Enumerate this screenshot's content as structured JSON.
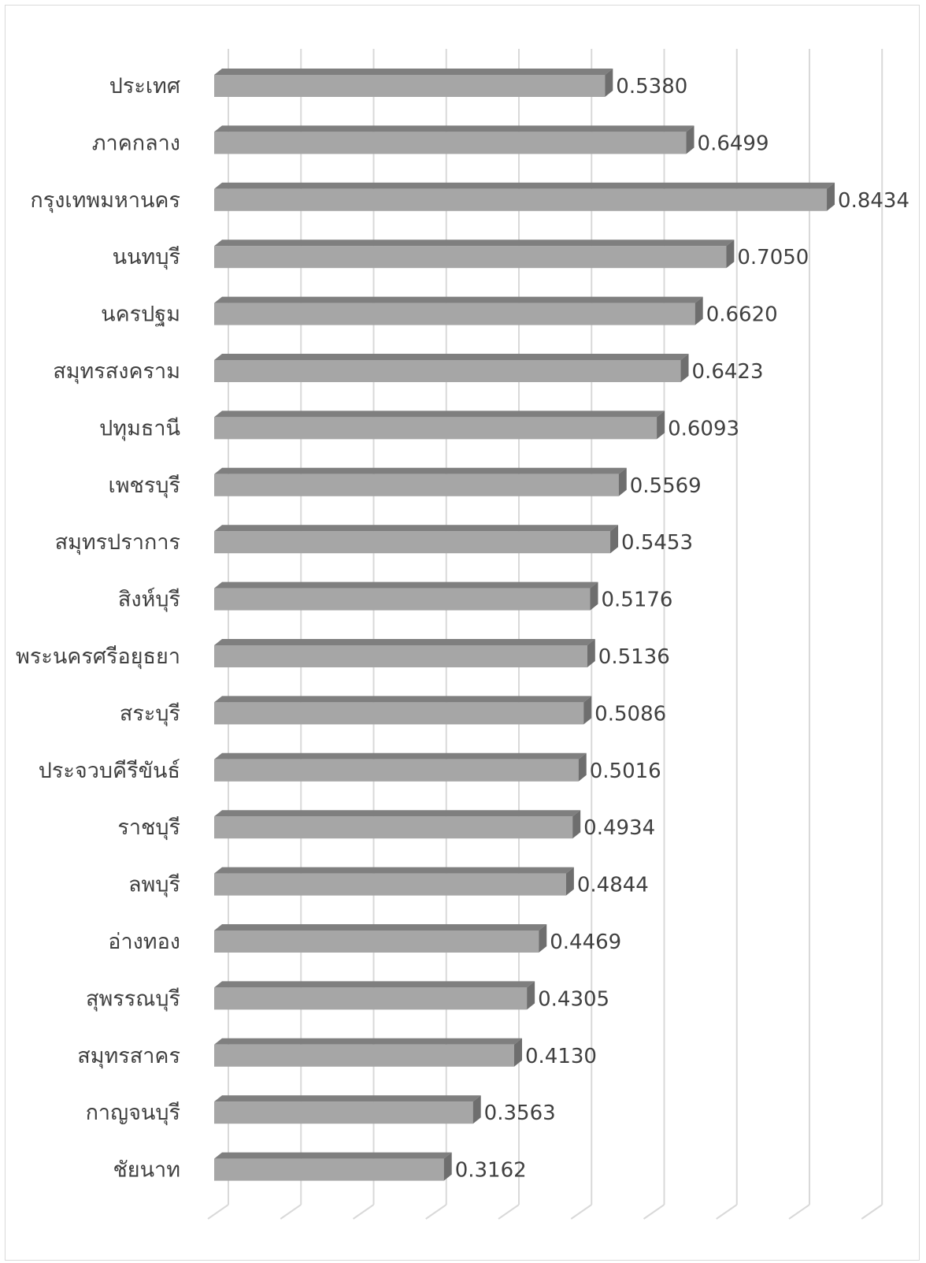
{
  "chart_data": {
    "type": "bar",
    "orientation": "horizontal",
    "style": "3d",
    "categories": [
      "ประเทศ",
      "ภาคกลาง",
      "กรุงเทพมหานคร",
      "นนทบุรี",
      "นครปฐม",
      "สมุทรสงคราม",
      "ปทุมธานี",
      "เพชรบุรี",
      "สมุทรปราการ",
      "สิงห์บุรี",
      "พระนครศรีอยุธยา",
      "สระบุรี",
      "ประจวบคีรีขันธ์",
      "ราชบุรี",
      "ลพบุรี",
      "อ่างทอง",
      "สุพรรณบุรี",
      "สมุทรสาคร",
      "กาญจนบุรี",
      "ชัยนาท"
    ],
    "values": [
      0.538,
      0.6499,
      0.8434,
      0.705,
      0.662,
      0.6423,
      0.6093,
      0.5569,
      0.5453,
      0.5176,
      0.5136,
      0.5086,
      0.5016,
      0.4934,
      0.4844,
      0.4469,
      0.4305,
      0.413,
      0.3563,
      0.3162
    ],
    "value_labels": [
      "0.5380",
      "0.6499",
      "0.8434",
      "0.7050",
      "0.6620",
      "0.6423",
      "0.6093",
      "0.5569",
      "0.5453",
      "0.5176",
      "0.5136",
      "0.5086",
      "0.5016",
      "0.4934",
      "0.4844",
      "0.4469",
      "0.4305",
      "0.4130",
      "0.3563",
      "0.3162"
    ],
    "xlim": [
      0,
      0.9
    ],
    "grid": true,
    "gridline_step": 0.1,
    "legend": "none",
    "colors": {
      "bar_front": "#a6a6a6",
      "bar_top": "#7f7f7f",
      "bar_side": "#6e6e6e",
      "gridline": "#d9d9d9",
      "text": "#404040"
    }
  }
}
